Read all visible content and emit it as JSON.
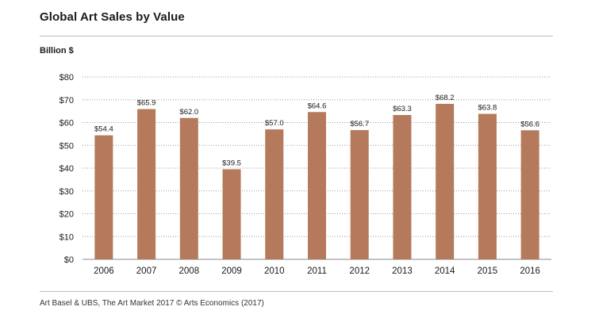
{
  "header": {
    "title": "Global Art Sales by Value"
  },
  "unit_label": "Billion $",
  "footer": {
    "source": "Art Basel & UBS, The Art Market 2017   © Arts Economics (2017)"
  },
  "colors": {
    "bar": "#b47a5b",
    "grid": "#9a9a9a",
    "axis": "#888888"
  },
  "chart_data": {
    "type": "bar",
    "title": "Global Art Sales by Value",
    "ylabel": "Billion $",
    "xlabel": "",
    "categories": [
      "2006",
      "2007",
      "2008",
      "2009",
      "2010",
      "2011",
      "2012",
      "2013",
      "2014",
      "2015",
      "2016"
    ],
    "values": [
      54.4,
      65.9,
      62.0,
      39.5,
      57.0,
      64.6,
      56.7,
      63.3,
      68.2,
      63.8,
      56.6
    ],
    "data_labels": [
      "$54.4",
      "$65.9",
      "$62.0",
      "$39.5",
      "$57.0",
      "$64.6",
      "$56.7",
      "$63.3",
      "$68.2",
      "$63.8",
      "$56.6"
    ],
    "ylim": [
      0,
      80
    ],
    "yticks": [
      0,
      10,
      20,
      30,
      40,
      50,
      60,
      70,
      80
    ],
    "ytick_labels": [
      "$0",
      "$10",
      "$20",
      "$30",
      "$40",
      "$50",
      "$60",
      "$70",
      "$80"
    ],
    "grid": true,
    "grid_style": "dotted horizontal",
    "legend": "none"
  }
}
